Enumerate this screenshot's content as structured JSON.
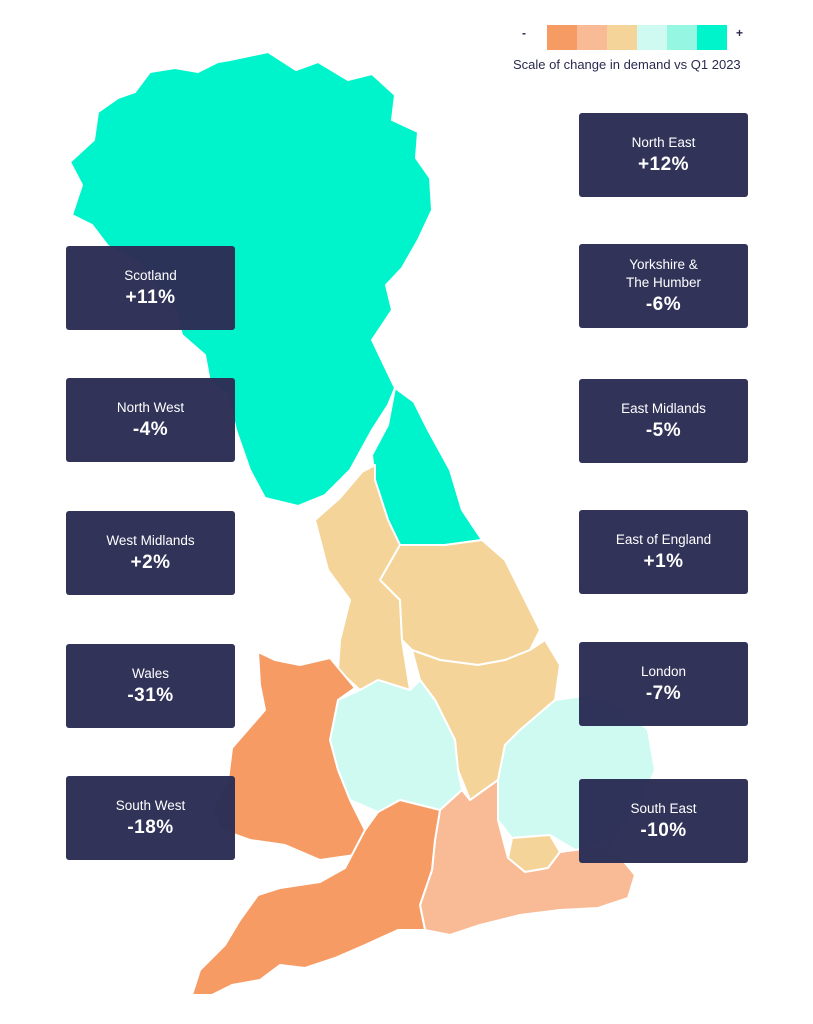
{
  "legend": {
    "minus": "-",
    "plus": "+",
    "text": "Scale of change in demand vs Q1 2023",
    "colors": [
      "#f79b64",
      "#f9bb96",
      "#f4d498",
      "#cffaf2",
      "#95f6e2",
      "#00f4cc"
    ]
  },
  "regions": {
    "north_east": {
      "name": "North East",
      "value": "+12%",
      "color": "#00f4cc"
    },
    "yorkshire": {
      "name": "Yorkshire &\nThe Humber",
      "value": "-6%",
      "color": "#f4d498"
    },
    "east_midlands": {
      "name": "East Midlands",
      "value": "-5%",
      "color": "#f4d498"
    },
    "east_england": {
      "name": "East of England",
      "value": "+1%",
      "color": "#cffaf2"
    },
    "london": {
      "name": "London",
      "value": "-7%",
      "color": "#f4d498"
    },
    "south_east": {
      "name": "South East",
      "value": "-10%",
      "color": "#f9bb96"
    },
    "scotland": {
      "name": "Scotland",
      "value": "+11%",
      "color": "#00f4cc"
    },
    "north_west": {
      "name": "North West",
      "value": "-4%",
      "color": "#f4d498"
    },
    "west_midlands": {
      "name": "West Midlands",
      "value": "+2%",
      "color": "#cffaf2"
    },
    "wales": {
      "name": "Wales",
      "value": "-31%",
      "color": "#f79b64"
    },
    "south_west": {
      "name": "South West",
      "value": "-18%",
      "color": "#f79b64"
    }
  }
}
